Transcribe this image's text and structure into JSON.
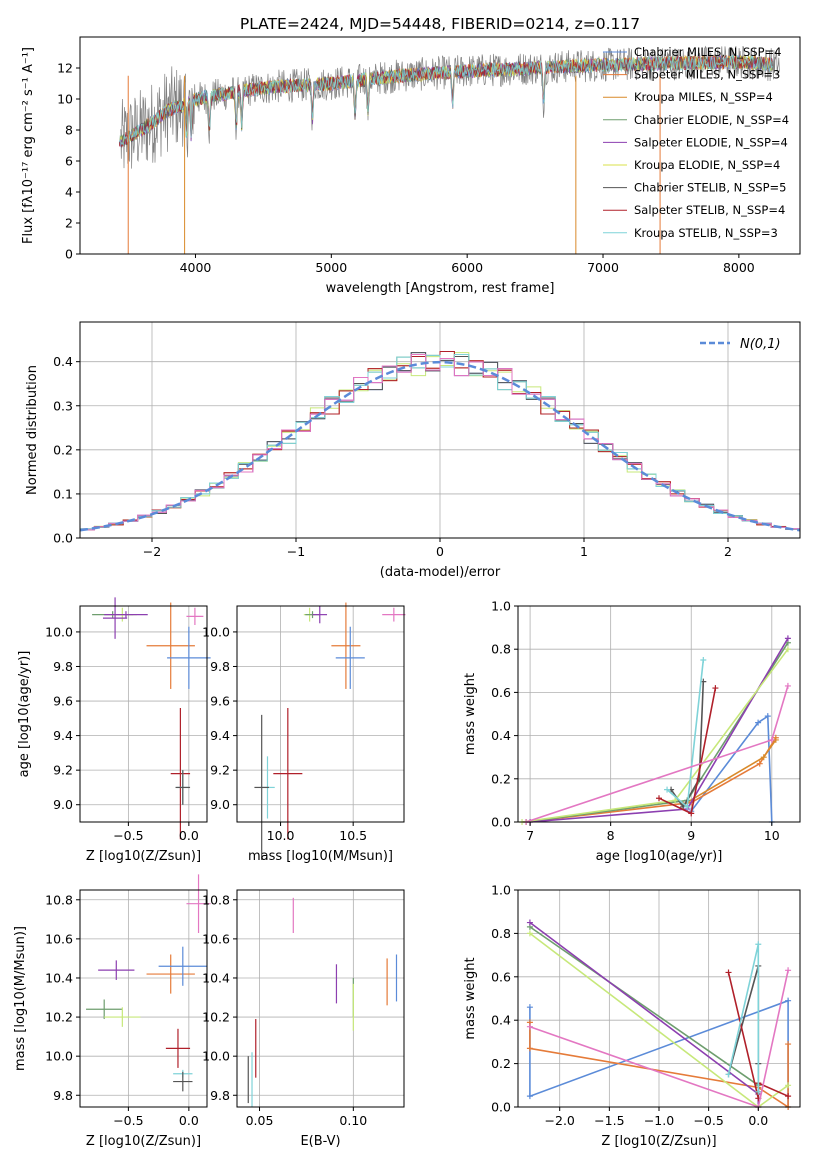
{
  "figure_title": "PLATE=2424, MJD=54448, FIBERID=0214, z=0.117",
  "chart_data": [
    {
      "id": "spectrum",
      "type": "line",
      "xlabel": "wavelength [Angstrom, rest frame]",
      "ylabel": "Flux [fλ10⁻¹⁷ erg cm⁻² s⁻¹ A⁻¹]",
      "xlim": [
        3150,
        8450
      ],
      "ylim": [
        0,
        14
      ],
      "xticks": [
        4000,
        5000,
        6000,
        7000,
        8000
      ],
      "yticks": [
        0,
        2,
        4,
        6,
        8,
        10,
        12
      ],
      "grid": false,
      "legend_loc": "upper right",
      "continuum_x": [
        3450,
        3500,
        3600,
        3700,
        3800,
        3900,
        4000,
        4200,
        4400,
        4600,
        4800,
        5000,
        5500,
        6000,
        6500,
        7000,
        7500,
        8000,
        8300
      ],
      "continuum_y": [
        7.2,
        7.5,
        8.0,
        8.6,
        9.3,
        9.6,
        10.0,
        10.3,
        10.6,
        10.8,
        10.9,
        11.0,
        11.5,
        11.8,
        12.0,
        12.2,
        12.3,
        12.4,
        12.2
      ],
      "series": [
        {
          "name": "Chabrier MILES, N_SSP=4",
          "color": "#5b8bd8"
        },
        {
          "name": "Salpeter MILES, N_SSP=3",
          "color": "#e57b39"
        },
        {
          "name": "Kroupa MILES, N_SSP=4",
          "color": "#d98a2a"
        },
        {
          "name": "Chabrier ELODIE, N_SSP=4",
          "color": "#6e9e6e"
        },
        {
          "name": "Salpeter ELODIE, N_SSP=4",
          "color": "#8c3fb0"
        },
        {
          "name": "Kroupa ELODIE, N_SSP=4",
          "color": "#d8e04a"
        },
        {
          "name": "Chabrier STELIB, N_SSP=5",
          "color": "#555555"
        },
        {
          "name": "Salpeter STELIB, N_SSP=4",
          "color": "#b0202a"
        },
        {
          "name": "Kroupa STELIB, N_SSP=3",
          "color": "#7fd3d8"
        }
      ]
    },
    {
      "id": "residuals",
      "type": "bar",
      "xlabel": "(data-model)/error",
      "ylabel": "Normed distribution",
      "xlim": [
        -2.5,
        2.5
      ],
      "ylim": [
        0,
        0.49
      ],
      "xticks": [
        -2,
        -1,
        0,
        1,
        2
      ],
      "yticks": [
        0.0,
        0.1,
        0.2,
        0.3,
        0.4
      ],
      "grid": true,
      "legend_loc": "upper right",
      "legend_label": "N(0,1)",
      "bin_width": 0.1,
      "colors": [
        "#5b8bd8",
        "#e57b39",
        "#6e9e6e",
        "#8c3fb0",
        "#c7e87a",
        "#555555",
        "#b0202a",
        "#7fd3d8",
        "#e377c2"
      ],
      "jitter": [
        0.018,
        -0.012,
        0.025,
        -0.02,
        0.01,
        -0.03,
        0.015,
        -0.008,
        0.03,
        -0.022,
        0.005,
        0.02,
        -0.015,
        0.028,
        -0.01
      ]
    },
    {
      "id": "age_vs_Z",
      "type": "scatter",
      "xlabel": "Z [log10(Z/Zsun)]",
      "ylabel": "age [log10(age/yr)]",
      "xlim": [
        -0.9,
        0.15
      ],
      "ylim": [
        8.9,
        10.15
      ],
      "xticks": [
        -0.5,
        0.0
      ],
      "yticks": [
        9.0,
        9.2,
        9.4,
        9.6,
        9.8,
        10.0
      ],
      "grid": true,
      "points": [
        {
          "x": -0.63,
          "xerr": 0.17,
          "y": 10.1,
          "yerr": 0.02,
          "color": "#6e9e6e"
        },
        {
          "x": -0.55,
          "xerr": 0.12,
          "y": 10.1,
          "yerr": 0.04,
          "color": "#c7e87a"
        },
        {
          "x": -0.52,
          "xerr": 0.18,
          "y": 10.1,
          "yerr": 0.02,
          "color": "#8c3fb0"
        },
        {
          "x": -0.61,
          "xerr": 0.1,
          "y": 10.08,
          "yerr": 0.12,
          "color": "#8c3fb0"
        },
        {
          "x": 0.05,
          "xerr": 0.07,
          "y": 10.09,
          "yerr": 0.05,
          "color": "#e377c2"
        },
        {
          "x": -0.15,
          "xerr": 0.2,
          "y": 9.92,
          "yerr": 0.25,
          "color": "#e57b39"
        },
        {
          "x": 0.0,
          "xerr": 0.18,
          "y": 9.85,
          "yerr": 0.18,
          "color": "#5b8bd8"
        },
        {
          "x": -0.07,
          "xerr": 0.08,
          "y": 9.18,
          "yerr": 0.38,
          "color": "#b0202a"
        },
        {
          "x": -0.05,
          "xerr": 0.05,
          "y": 9.1,
          "yerr": 0.1,
          "color": "#7fd3d8"
        },
        {
          "x": -0.05,
          "xerr": 0.06,
          "y": 9.1,
          "yerr": 0.1,
          "color": "#555555"
        }
      ]
    },
    {
      "id": "age_vs_mass",
      "type": "scatter",
      "xlabel": "mass [log10(M/Msun)]",
      "ylabel": "",
      "xlim": [
        9.7,
        10.85
      ],
      "ylim": [
        8.9,
        10.15
      ],
      "xticks": [
        10.0,
        10.5
      ],
      "yticks": [
        9.0,
        9.2,
        9.4,
        9.6,
        9.8,
        10.0
      ],
      "grid": true,
      "points": [
        {
          "x": 10.2,
          "xerr": 0.04,
          "y": 10.1,
          "yerr": 0.04,
          "color": "#c7e87a"
        },
        {
          "x": 10.22,
          "xerr": 0.05,
          "y": 10.1,
          "yerr": 0.02,
          "color": "#6e9e6e"
        },
        {
          "x": 10.27,
          "xerr": 0.05,
          "y": 10.1,
          "yerr": 0.05,
          "color": "#8c3fb0"
        },
        {
          "x": 10.78,
          "xerr": 0.08,
          "y": 10.1,
          "yerr": 0.04,
          "color": "#e377c2"
        },
        {
          "x": 10.45,
          "xerr": 0.1,
          "y": 9.92,
          "yerr": 0.25,
          "color": "#e57b39"
        },
        {
          "x": 10.48,
          "xerr": 0.1,
          "y": 9.85,
          "yerr": 0.18,
          "color": "#5b8bd8"
        },
        {
          "x": 10.05,
          "xerr": 0.1,
          "y": 9.18,
          "yerr": 0.38,
          "color": "#b0202a"
        },
        {
          "x": 9.91,
          "xerr": 0.05,
          "y": 9.1,
          "yerr": 0.18,
          "color": "#7fd3d8"
        },
        {
          "x": 9.87,
          "xerr": 0.05,
          "y": 9.1,
          "yerr": 0.42,
          "color": "#555555"
        }
      ]
    },
    {
      "id": "weight_vs_age",
      "type": "line",
      "xlabel": "age [log10(age/yr)]",
      "ylabel": "mass weight",
      "xlim": [
        6.85,
        10.35
      ],
      "ylim": [
        0,
        1.0
      ],
      "xticks": [
        7,
        8,
        9,
        10
      ],
      "yticks": [
        0.0,
        0.2,
        0.4,
        0.6,
        0.8,
        1.0
      ],
      "grid": true,
      "series": [
        {
          "color": "#5b8bd8",
          "x": [
            9.0,
            9.83,
            9.95,
            10.0
          ],
          "y": [
            0.05,
            0.46,
            0.49,
            0.0
          ]
        },
        {
          "color": "#e57b39",
          "x": [
            6.95,
            9.0,
            9.85,
            10.05
          ],
          "y": [
            0.0,
            0.09,
            0.27,
            0.39
          ]
        },
        {
          "color": "#d98a2a",
          "x": [
            8.9,
            9.9,
            10.05
          ],
          "y": [
            0.08,
            0.3,
            0.38
          ]
        },
        {
          "color": "#6e9e6e",
          "x": [
            6.95,
            8.95,
            10.2
          ],
          "y": [
            0.0,
            0.1,
            0.83
          ]
        },
        {
          "color": "#8c3fb0",
          "x": [
            7.0,
            8.95,
            10.2
          ],
          "y": [
            0.0,
            0.06,
            0.85
          ]
        },
        {
          "color": "#c7e87a",
          "x": [
            6.9,
            8.8,
            10.2
          ],
          "y": [
            0.0,
            0.1,
            0.8
          ]
        },
        {
          "color": "#555555",
          "x": [
            8.75,
            8.9,
            9.1,
            9.15
          ],
          "y": [
            0.15,
            0.07,
            0.2,
            0.65
          ]
        },
        {
          "color": "#b0202a",
          "x": [
            8.6,
            9.0,
            9.3
          ],
          "y": [
            0.11,
            0.04,
            0.62
          ]
        },
        {
          "color": "#7fd3d8",
          "x": [
            8.7,
            8.95,
            9.15
          ],
          "y": [
            0.15,
            0.07,
            0.75
          ]
        },
        {
          "color": "#e377c2",
          "x": [
            6.95,
            10.0,
            10.2
          ],
          "y": [
            0.0,
            0.38,
            0.63
          ]
        }
      ]
    },
    {
      "id": "mass_vs_Z",
      "type": "scatter",
      "xlabel": "Z [log10(Z/Zsun)]",
      "ylabel": "mass [log10(M/Msun)]",
      "xlim": [
        -0.9,
        0.15
      ],
      "ylim": [
        9.74,
        10.85
      ],
      "xticks": [
        -0.5,
        0.0
      ],
      "yticks": [
        9.8,
        10.0,
        10.2,
        10.4,
        10.6,
        10.8
      ],
      "grid": true,
      "points": [
        {
          "x": 0.08,
          "xerr": 0.1,
          "y": 10.78,
          "yerr": 0.15,
          "color": "#e377c2"
        },
        {
          "x": -0.6,
          "xerr": 0.15,
          "y": 10.44,
          "yerr": 0.05,
          "color": "#8c3fb0"
        },
        {
          "x": -0.15,
          "xerr": 0.2,
          "y": 10.42,
          "yerr": 0.1,
          "color": "#e57b39"
        },
        {
          "x": -0.05,
          "xerr": 0.2,
          "y": 10.46,
          "yerr": 0.1,
          "color": "#5b8bd8"
        },
        {
          "x": -0.7,
          "xerr": 0.15,
          "y": 10.24,
          "yerr": 0.05,
          "color": "#6e9e6e"
        },
        {
          "x": -0.55,
          "xerr": 0.15,
          "y": 10.2,
          "yerr": 0.05,
          "color": "#c7e87a"
        },
        {
          "x": -0.09,
          "xerr": 0.1,
          "y": 10.04,
          "yerr": 0.1,
          "color": "#b0202a"
        },
        {
          "x": -0.05,
          "xerr": 0.08,
          "y": 9.91,
          "yerr": 0.02,
          "color": "#7fd3d8"
        },
        {
          "x": -0.05,
          "xerr": 0.08,
          "y": 9.87,
          "yerr": 0.05,
          "color": "#555555"
        }
      ]
    },
    {
      "id": "mass_vs_ebv",
      "type": "scatter",
      "xlabel": "E(B-V)",
      "ylabel": "",
      "xlim": [
        0.038,
        0.127
      ],
      "ylim": [
        9.74,
        10.85
      ],
      "xticks": [
        0.05,
        0.1
      ],
      "yticks": [
        9.8,
        10.0,
        10.2,
        10.4,
        10.6,
        10.8
      ],
      "grid": true,
      "points": [
        {
          "x": 0.068,
          "y": 10.72,
          "yerr": 0.09,
          "color": "#e377c2"
        },
        {
          "x": 0.091,
          "y": 10.37,
          "yerr": 0.1,
          "color": "#8c3fb0"
        },
        {
          "x": 0.1,
          "y": 10.3,
          "yerr": 0.1,
          "color": "#6e9e6e"
        },
        {
          "x": 0.1,
          "y": 10.25,
          "yerr": 0.12,
          "color": "#c7e87a"
        },
        {
          "x": 0.118,
          "y": 10.38,
          "yerr": 0.12,
          "color": "#e57b39"
        },
        {
          "x": 0.123,
          "y": 10.4,
          "yerr": 0.12,
          "color": "#5b8bd8"
        },
        {
          "x": 0.048,
          "y": 10.04,
          "yerr": 0.15,
          "color": "#b0202a"
        },
        {
          "x": 0.046,
          "y": 9.88,
          "yerr": 0.14,
          "color": "#7fd3d8"
        },
        {
          "x": 0.044,
          "y": 9.88,
          "yerr": 0.12,
          "color": "#555555"
        }
      ]
    },
    {
      "id": "weight_vs_Z",
      "type": "line",
      "xlabel": "Z [log10(Z/Zsun)]",
      "ylabel": "mass weight",
      "xlim": [
        -2.42,
        0.42
      ],
      "ylim": [
        0,
        1.0
      ],
      "xticks": [
        -2.0,
        -1.5,
        -1.0,
        -0.5,
        0.0
      ],
      "yticks": [
        0.0,
        0.2,
        0.4,
        0.6,
        0.8,
        1.0
      ],
      "grid": true,
      "series": [
        {
          "color": "#5b8bd8",
          "x": [
            -2.3,
            -2.3,
            0.3,
            0.3
          ],
          "y": [
            0.46,
            0.05,
            0.49,
            0.0
          ]
        },
        {
          "color": "#e57b39",
          "x": [
            -2.3,
            -2.3,
            0.0,
            0.3,
            0.3
          ],
          "y": [
            0.39,
            0.27,
            0.09,
            0.0,
            0.29
          ]
        },
        {
          "color": "#6e9e6e",
          "x": [
            -2.3,
            0.0,
            0.0
          ],
          "y": [
            0.83,
            0.1,
            0.0
          ]
        },
        {
          "color": "#8c3fb0",
          "x": [
            -2.3,
            0.0,
            0.0
          ],
          "y": [
            0.85,
            0.06,
            0.0
          ]
        },
        {
          "color": "#c7e87a",
          "x": [
            -2.3,
            0.0,
            0.3
          ],
          "y": [
            0.8,
            0.0,
            0.1
          ]
        },
        {
          "color": "#555555",
          "x": [
            -0.3,
            0.0,
            0.0,
            0.0
          ],
          "y": [
            0.15,
            0.65,
            0.2,
            0.07
          ]
        },
        {
          "color": "#b0202a",
          "x": [
            -0.3,
            0.0,
            0.0,
            0.3
          ],
          "y": [
            0.62,
            0.04,
            0.11,
            0.05
          ]
        },
        {
          "color": "#7fd3d8",
          "x": [
            -0.3,
            0.0,
            0.0
          ],
          "y": [
            0.15,
            0.75,
            0.07
          ]
        },
        {
          "color": "#e377c2",
          "x": [
            -2.3,
            0.0,
            0.3
          ],
          "y": [
            0.37,
            0.0,
            0.63
          ]
        }
      ]
    }
  ]
}
